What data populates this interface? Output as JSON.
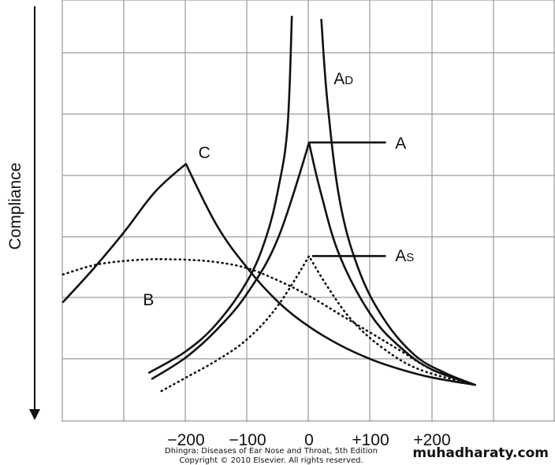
{
  "chart_data": {
    "type": "line",
    "title": "",
    "xlabel": "",
    "ylabel": "Compliance",
    "x_ticks": [
      "−200",
      "−100",
      "0",
      "+100",
      "+200"
    ],
    "x_tick_values": [
      -200,
      -100,
      0,
      100,
      200
    ],
    "xlim": [
      -400,
      300
    ],
    "ylim": [
      0,
      6
    ],
    "grid": true,
    "legend": "none",
    "series": [
      {
        "name": "C",
        "style": "solid",
        "points": [
          [
            -400,
            1.95
          ],
          [
            -350,
            2.5
          ],
          [
            -300,
            3.1
          ],
          [
            -250,
            3.75
          ],
          [
            -200,
            4.2
          ],
          [
            -150,
            3.2
          ],
          [
            -100,
            2.5
          ],
          [
            -50,
            1.95
          ],
          [
            0,
            1.55
          ],
          [
            50,
            1.25
          ],
          [
            100,
            1.02
          ],
          [
            150,
            0.85
          ],
          [
            200,
            0.72
          ],
          [
            270,
            0.6
          ]
        ]
      },
      {
        "name": "B",
        "style": "dotted",
        "points": [
          [
            -400,
            2.4
          ],
          [
            -350,
            2.55
          ],
          [
            -300,
            2.62
          ],
          [
            -250,
            2.65
          ],
          [
            -200,
            2.64
          ],
          [
            -150,
            2.6
          ],
          [
            -100,
            2.5
          ],
          [
            -50,
            2.3
          ],
          [
            0,
            2.05
          ],
          [
            50,
            1.75
          ],
          [
            100,
            1.45
          ],
          [
            150,
            1.15
          ],
          [
            200,
            0.85
          ],
          [
            270,
            0.6
          ]
        ]
      },
      {
        "name": "AD",
        "style": "solid",
        "points": [
          [
            -260,
            0.8
          ],
          [
            -200,
            1.15
          ],
          [
            -150,
            1.6
          ],
          [
            -100,
            2.3
          ],
          [
            -70,
            3.0
          ],
          [
            -50,
            3.8
          ],
          [
            -35,
            4.8
          ],
          [
            -28,
            6.6
          ]
        ]
      },
      {
        "name": "AD",
        "style": "solid",
        "points": [
          [
            20,
            6.55
          ],
          [
            30,
            5.2
          ],
          [
            50,
            3.6
          ],
          [
            80,
            2.5
          ],
          [
            120,
            1.7
          ],
          [
            170,
            1.1
          ],
          [
            220,
            0.8
          ],
          [
            270,
            0.6
          ]
        ]
      },
      {
        "name": "A",
        "style": "solid",
        "points": [
          [
            -255,
            0.7
          ],
          [
            -200,
            1.05
          ],
          [
            -150,
            1.5
          ],
          [
            -100,
            2.1
          ],
          [
            -50,
            3.0
          ],
          [
            0,
            4.55
          ],
          [
            20,
            3.7
          ],
          [
            50,
            2.7
          ],
          [
            100,
            1.75
          ],
          [
            150,
            1.2
          ],
          [
            200,
            0.85
          ],
          [
            270,
            0.6
          ]
        ]
      },
      {
        "name": "As",
        "style": "dotted",
        "points": [
          [
            -240,
            0.5
          ],
          [
            -200,
            0.72
          ],
          [
            -150,
            1.0
          ],
          [
            -100,
            1.35
          ],
          [
            -50,
            1.9
          ],
          [
            0,
            2.7
          ],
          [
            30,
            2.2
          ],
          [
            70,
            1.65
          ],
          [
            120,
            1.2
          ],
          [
            180,
            0.85
          ],
          [
            270,
            0.6
          ]
        ]
      }
    ],
    "annotations": [
      {
        "text": "C",
        "x": -180,
        "y": 4.4
      },
      {
        "text": "B",
        "x": -270,
        "y": 2.0
      },
      {
        "text": "A",
        "sub": "D",
        "x": 40,
        "y": 5.6
      },
      {
        "text": "A",
        "x": 140,
        "y": 4.55
      },
      {
        "text": "A",
        "sub": "S",
        "x": 140,
        "y": 2.72
      }
    ]
  },
  "credit": {
    "line1": "Dhingra: Diseases of Ear Nose and Throat, 5th Edition",
    "line2": "Copyright © 2010 Elsevier. All rights reserved."
  },
  "watermark": "muhadharaty.com"
}
